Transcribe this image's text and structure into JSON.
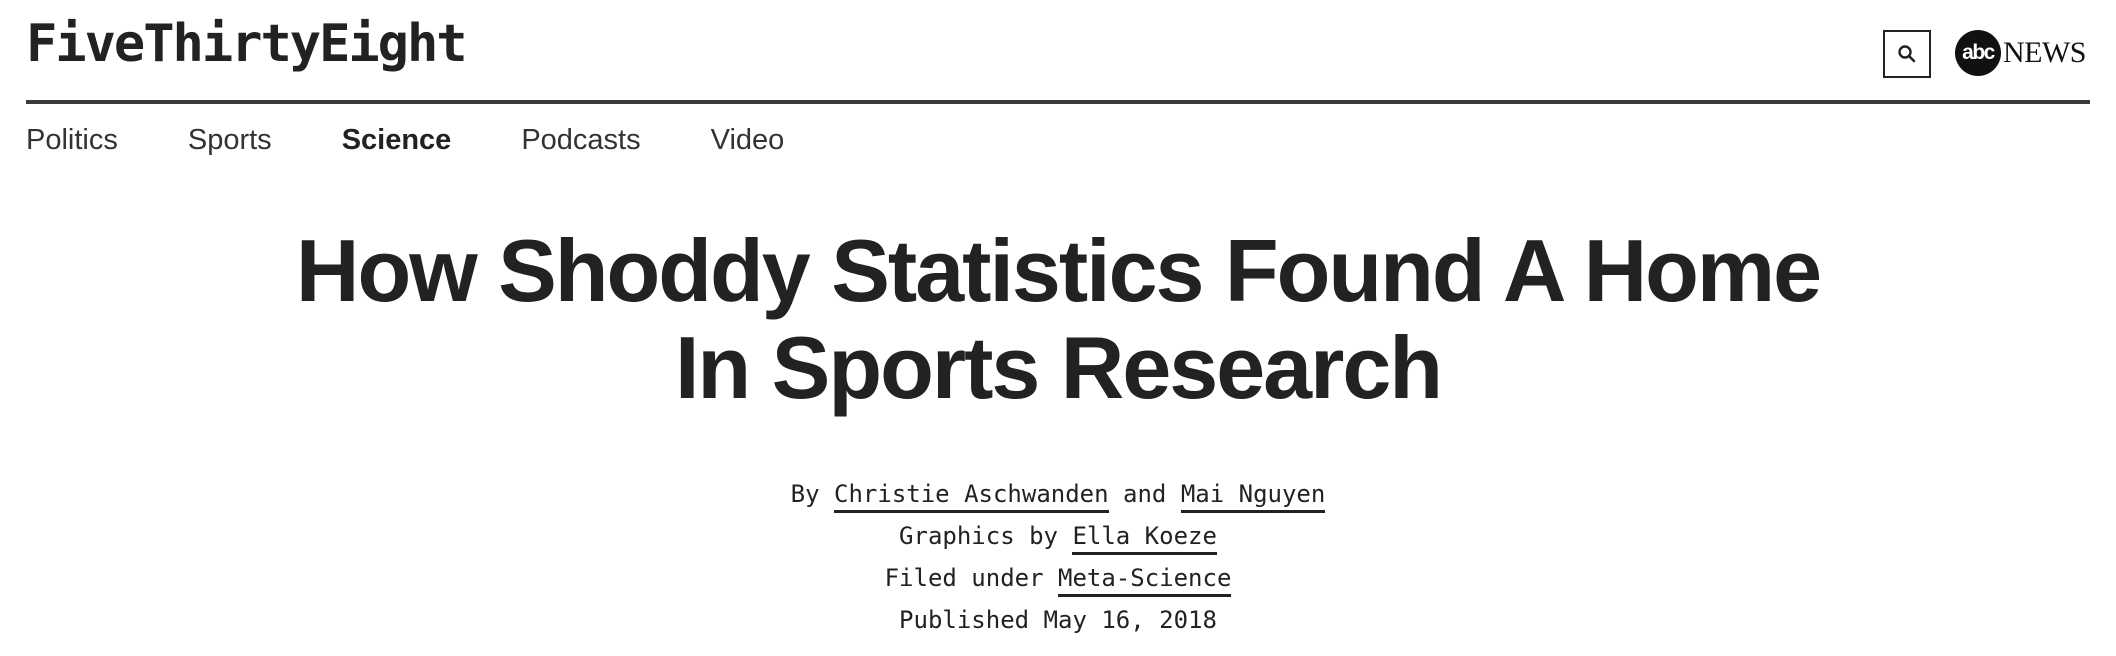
{
  "header": {
    "logo": "FiveThirtyEight",
    "search_icon": "search-icon",
    "partner_logo_circle": "abc",
    "partner_logo_text": "NEWS"
  },
  "nav": {
    "items": [
      {
        "label": "Politics",
        "active": false
      },
      {
        "label": "Sports",
        "active": false
      },
      {
        "label": "Science",
        "active": true
      },
      {
        "label": "Podcasts",
        "active": false
      },
      {
        "label": "Video",
        "active": false
      }
    ]
  },
  "article": {
    "title_line1": "How Shoddy Statistics Found A Home",
    "title_line2": "In Sports Research",
    "byline": {
      "prefix": "By ",
      "author1": "Christie Aschwanden",
      "joiner": " and ",
      "author2": "Mai Nguyen"
    },
    "graphics": {
      "prefix": "Graphics by ",
      "author": "Ella Koeze"
    },
    "filed": {
      "prefix": "Filed under ",
      "topic": "Meta-Science"
    },
    "published": "Published May 16, 2018"
  },
  "colors": {
    "text": "#222222",
    "rule": "#3a3a3a",
    "background": "#ffffff"
  }
}
